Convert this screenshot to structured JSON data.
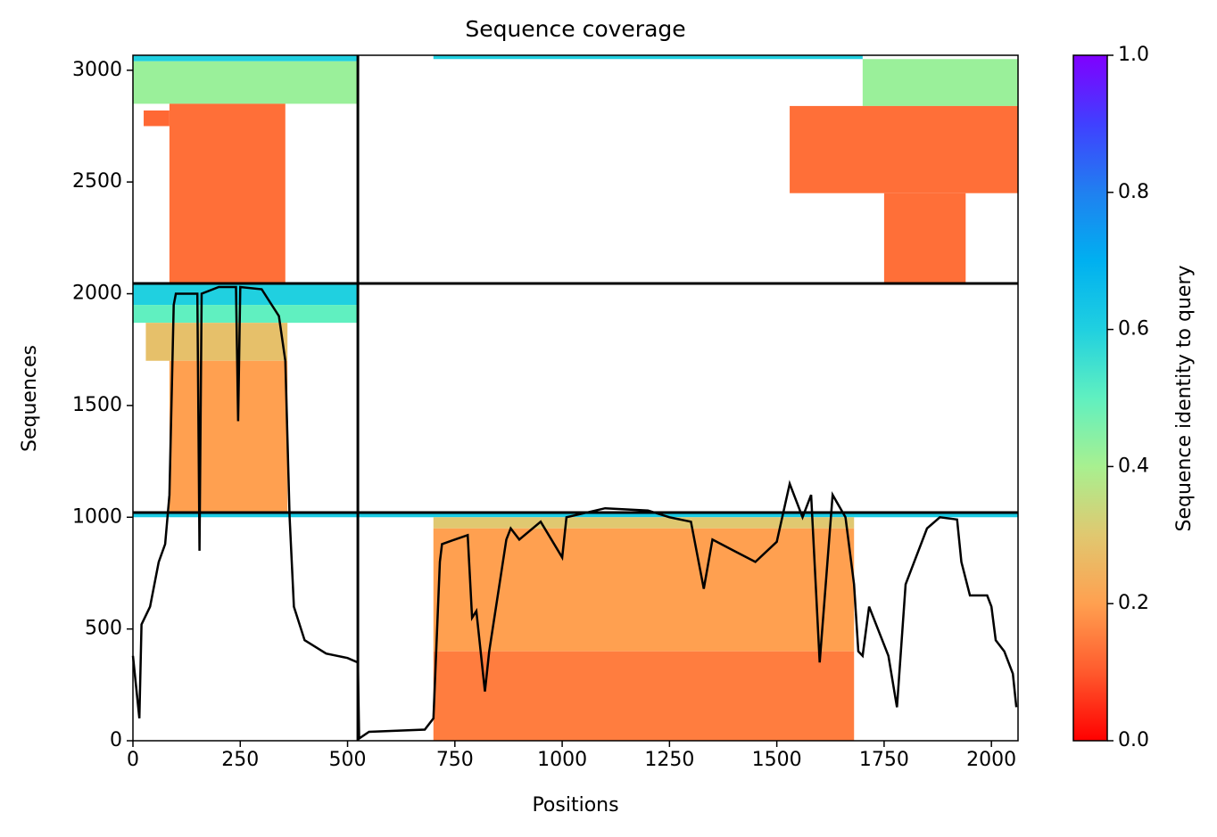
{
  "chart_data": {
    "type": "coverage",
    "title": "Sequence coverage",
    "x_label": "Positions",
    "y_label": "Sequences",
    "colorbar_label": "Sequence identity to query",
    "xlim": [
      0,
      2062
    ],
    "ylim": [
      0,
      3067
    ],
    "xticks": [
      0,
      250,
      500,
      750,
      1000,
      1250,
      1500,
      1750,
      2000
    ],
    "yticks": [
      0,
      500,
      1000,
      1500,
      2000,
      2500,
      3000
    ],
    "clim": [
      0,
      1
    ],
    "cticks": [
      {
        "value": 0,
        "label": "0.0"
      },
      {
        "value": 0.2,
        "label": "0.2"
      },
      {
        "value": 0.4,
        "label": "0.4"
      },
      {
        "value": 0.6,
        "label": "0.6"
      },
      {
        "value": 0.8,
        "label": "0.8"
      },
      {
        "value": 1,
        "label": "1.0"
      }
    ],
    "colormap": [
      "#ff0000",
      "#ff5a2d",
      "#ffa050",
      "#e0c870",
      "#a8f090",
      "#60f0c0",
      "#20d0e0",
      "#00b0f0",
      "#2080f0",
      "#4040ff",
      "#8000ff"
    ],
    "line_color": "#000000",
    "dividers": {
      "x": [
        524
      ],
      "y": [
        1021,
        2046
      ]
    },
    "blocks": [
      {
        "x": [
          0,
          524
        ],
        "y": [
          3040,
          3067
        ],
        "value": 0.6
      },
      {
        "x": [
          0,
          524
        ],
        "y": [
          2850,
          3040
        ],
        "value": 0.42
      },
      {
        "x": [
          25,
          85
        ],
        "y": [
          2750,
          2820
        ],
        "value": 0.12
      },
      {
        "x": [
          85,
          355
        ],
        "y": [
          2046,
          2850
        ],
        "value": 0.13
      },
      {
        "x": [
          0,
          524
        ],
        "y": [
          1950,
          2046
        ],
        "value": 0.6
      },
      {
        "x": [
          0,
          524
        ],
        "y": [
          1870,
          1950
        ],
        "value": 0.5
      },
      {
        "x": [
          30,
          360
        ],
        "y": [
          1700,
          1870
        ],
        "value": 0.28
      },
      {
        "x": [
          85,
          360
        ],
        "y": [
          1021,
          1700
        ],
        "value": 0.2
      },
      {
        "x": [
          700,
          1700
        ],
        "y": [
          3050,
          3067
        ],
        "value": 0.6
      },
      {
        "x": [
          1700,
          2062
        ],
        "y": [
          2840,
          3050
        ],
        "value": 0.42
      },
      {
        "x": [
          1530,
          2062
        ],
        "y": [
          2450,
          2840
        ],
        "value": 0.13
      },
      {
        "x": [
          1750,
          1940
        ],
        "y": [
          2046,
          2450
        ],
        "value": 0.13
      },
      {
        "x": [
          0,
          2062
        ],
        "y": [
          1000,
          1021
        ],
        "value": 0.62
      },
      {
        "x": [
          700,
          1680
        ],
        "y": [
          950,
          1000
        ],
        "value": 0.3
      },
      {
        "x": [
          700,
          1680
        ],
        "y": [
          400,
          950
        ],
        "value": 0.2
      },
      {
        "x": [
          700,
          1680
        ],
        "y": [
          0,
          400
        ],
        "value": 0.15
      }
    ],
    "coverage": {
      "x": [
        0,
        15,
        20,
        40,
        60,
        75,
        85,
        95,
        100,
        150,
        155,
        160,
        200,
        240,
        245,
        250,
        300,
        340,
        355,
        365,
        375,
        400,
        450,
        500,
        524,
        527,
        550,
        680,
        700,
        715,
        720,
        750,
        780,
        790,
        800,
        820,
        830,
        850,
        870,
        880,
        900,
        950,
        1000,
        1010,
        1100,
        1200,
        1250,
        1300,
        1330,
        1350,
        1400,
        1450,
        1500,
        1530,
        1560,
        1580,
        1600,
        1630,
        1660,
        1680,
        1690,
        1700,
        1715,
        1760,
        1780,
        1800,
        1850,
        1880,
        1920,
        1930,
        1950,
        1990,
        2000,
        2010,
        2030,
        2050,
        2058
      ],
      "values": [
        380,
        100,
        520,
        600,
        800,
        880,
        1100,
        1950,
        2000,
        2000,
        850,
        2000,
        2030,
        2030,
        1430,
        2030,
        2020,
        1900,
        1700,
        1000,
        600,
        450,
        390,
        370,
        350,
        10,
        40,
        50,
        100,
        800,
        880,
        900,
        920,
        550,
        580,
        220,
        400,
        650,
        900,
        950,
        900,
        980,
        820,
        1000,
        1040,
        1030,
        1000,
        980,
        680,
        900,
        850,
        800,
        890,
        1150,
        1000,
        1100,
        350,
        1100,
        1000,
        700,
        400,
        380,
        600,
        380,
        150,
        700,
        950,
        1000,
        990,
        800,
        650,
        650,
        600,
        450,
        400,
        300,
        150
      ]
    }
  }
}
